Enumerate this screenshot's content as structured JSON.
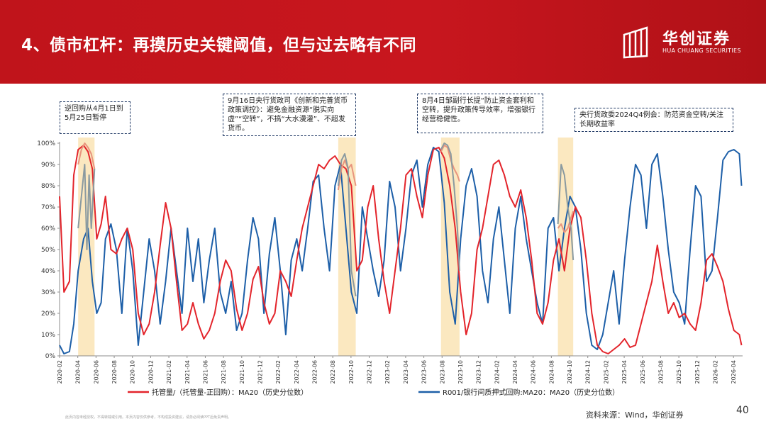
{
  "header": {
    "title": "4、债市杠杆：再摸历史关键阈值，但与过去略有不同",
    "logo_cn": "华创证券",
    "logo_en": "HUA CHUANG SECURITIES"
  },
  "annotations": [
    "逆回购从4月1日到5月25日暂停",
    "9月16日央行货政司《创新和完善货币政策调控》：避免金融资源“脱实向虚”“空转”，不搞“大水漫灌”、不超发货币。",
    "8月4日邹副行长提“防止资金套利和空转，提升政策传导效率，增强银行经营稳健性。",
    "央行货政委2024Q4例会：防范资金空转/关注长期收益率"
  ],
  "footer": {
    "disclaimer": "此页内容未经授权，不得转载或引用。本页内容仅供参考，不构成投资建议，请务必阅读PPT后免责声明。",
    "source": "资料来源：Wind，华创证券",
    "page_number": "40"
  },
  "chart_data": {
    "type": "line",
    "y_tick_labels": [
      "0%",
      "10%",
      "20%",
      "30%",
      "40%",
      "50%",
      "60%",
      "70%",
      "80%",
      "90%",
      "100%"
    ],
    "ylim": [
      0,
      100
    ],
    "x_tick_labels": [
      "2020-02",
      "2020-04",
      "2020-06",
      "2020-08",
      "2020-10",
      "2020-12",
      "2021-02",
      "2021-04",
      "2021-06",
      "2021-08",
      "2021-10",
      "2021-12",
      "2022-02",
      "2022-04",
      "2022-06",
      "2022-08",
      "2022-10",
      "2022-12",
      "2023-02",
      "2023-04",
      "2023-06",
      "2023-08",
      "2023-10",
      "2023-12",
      "2024-02",
      "2024-04",
      "2024-06",
      "2024-08",
      "2024-10",
      "2024-12",
      "2025-02",
      "2025-04",
      "2025-06",
      "2025-08",
      "2025-10",
      "2025-12",
      "2026-02",
      "2026-04"
    ],
    "x_range": [
      2020.08,
      2026.33
    ],
    "grid": false,
    "legend": "bottom",
    "shaded_periods": [
      {
        "start": 2020.25,
        "end": 2020.4
      },
      {
        "start": 2022.63,
        "end": 2022.79
      },
      {
        "start": 2023.57,
        "end": 2023.74
      },
      {
        "start": 2024.64,
        "end": 2024.78
      }
    ],
    "series": [
      {
        "name": "托管量/（托管量-正回购）：MA20（历史分位数）",
        "color": "#e3242b",
        "x": [
          2020.08,
          2020.12,
          2020.17,
          2020.21,
          2020.25,
          2020.3,
          2020.34,
          2020.38,
          2020.42,
          2020.46,
          2020.5,
          2020.55,
          2020.6,
          2020.65,
          2020.7,
          2020.75,
          2020.8,
          2020.85,
          2020.9,
          2020.95,
          2021.0,
          2021.05,
          2021.1,
          2021.15,
          2021.2,
          2021.25,
          2021.3,
          2021.35,
          2021.4,
          2021.45,
          2021.5,
          2021.55,
          2021.6,
          2021.65,
          2021.7,
          2021.75,
          2021.8,
          2021.85,
          2021.9,
          2021.95,
          2022.0,
          2022.05,
          2022.1,
          2022.15,
          2022.2,
          2022.25,
          2022.3,
          2022.35,
          2022.4,
          2022.45,
          2022.5,
          2022.55,
          2022.6,
          2022.65,
          2022.7,
          2022.75,
          2022.8,
          2022.85,
          2022.9,
          2022.95,
          2023.0,
          2023.05,
          2023.1,
          2023.15,
          2023.2,
          2023.25,
          2023.3,
          2023.35,
          2023.4,
          2023.45,
          2023.5,
          2023.55,
          2023.6,
          2023.65,
          2023.7,
          2023.75,
          2023.8,
          2023.85,
          2023.9,
          2023.95,
          2024.0,
          2024.05,
          2024.1,
          2024.15,
          2024.2,
          2024.25,
          2024.3,
          2024.35,
          2024.4,
          2024.45,
          2024.5,
          2024.55,
          2024.6,
          2024.65,
          2024.7,
          2024.75,
          2024.8,
          2024.85,
          2024.9,
          2024.95,
          2025.0,
          2025.05,
          2025.1,
          2025.15,
          2025.2,
          2025.25,
          2025.3,
          2025.35,
          2025.4,
          2025.45,
          2025.5,
          2025.55,
          2025.6,
          2025.65,
          2025.7,
          2025.75,
          2025.8,
          2025.85,
          2025.9,
          2025.95,
          2026.0,
          2026.05,
          2026.1,
          2026.15,
          2026.2,
          2026.25,
          2026.3,
          2026.32
        ],
        "y": [
          75,
          30,
          35,
          85,
          97,
          99,
          96,
          88,
          55,
          62,
          75,
          50,
          48,
          55,
          60,
          50,
          20,
          10,
          15,
          30,
          52,
          72,
          60,
          35,
          12,
          15,
          25,
          15,
          8,
          12,
          20,
          35,
          45,
          40,
          22,
          12,
          20,
          36,
          42,
          25,
          15,
          20,
          40,
          35,
          28,
          45,
          60,
          70,
          80,
          90,
          88,
          92,
          94,
          90,
          88,
          80,
          40,
          45,
          70,
          80,
          55,
          35,
          20,
          40,
          60,
          85,
          88,
          75,
          65,
          85,
          97,
          98,
          93,
          80,
          60,
          30,
          10,
          20,
          50,
          60,
          75,
          90,
          92,
          85,
          75,
          70,
          78,
          65,
          45,
          20,
          15,
          25,
          45,
          55,
          40,
          60,
          70,
          65,
          45,
          20,
          5,
          2,
          1,
          3,
          5,
          8,
          4,
          5,
          15,
          25,
          35,
          52,
          35,
          20,
          25,
          18,
          20,
          15,
          12,
          25,
          45,
          48,
          42,
          35,
          22,
          12,
          10,
          5
        ]
      },
      {
        "name": "R001/银行间质押式回购:MA20：MA20（历史分位数）",
        "color": "#1d5fa8",
        "x": [
          2020.08,
          2020.12,
          2020.17,
          2020.21,
          2020.25,
          2020.3,
          2020.34,
          2020.38,
          2020.42,
          2020.46,
          2020.5,
          2020.55,
          2020.6,
          2020.65,
          2020.7,
          2020.75,
          2020.8,
          2020.85,
          2020.9,
          2020.95,
          2021.0,
          2021.05,
          2021.1,
          2021.15,
          2021.2,
          2021.25,
          2021.3,
          2021.35,
          2021.4,
          2021.45,
          2021.5,
          2021.55,
          2021.6,
          2021.65,
          2021.7,
          2021.75,
          2021.8,
          2021.85,
          2021.9,
          2021.95,
          2022.0,
          2022.05,
          2022.1,
          2022.15,
          2022.2,
          2022.25,
          2022.3,
          2022.35,
          2022.4,
          2022.45,
          2022.5,
          2022.55,
          2022.6,
          2022.65,
          2022.7,
          2022.75,
          2022.8,
          2022.85,
          2022.9,
          2022.95,
          2023.0,
          2023.05,
          2023.1,
          2023.15,
          2023.2,
          2023.25,
          2023.3,
          2023.35,
          2023.4,
          2023.45,
          2023.5,
          2023.55,
          2023.6,
          2023.65,
          2023.7,
          2023.75,
          2023.8,
          2023.85,
          2023.9,
          2023.95,
          2024.0,
          2024.05,
          2024.1,
          2024.15,
          2024.2,
          2024.25,
          2024.3,
          2024.35,
          2024.4,
          2024.45,
          2024.5,
          2024.55,
          2024.6,
          2024.65,
          2024.7,
          2024.75,
          2024.8,
          2024.85,
          2024.9,
          2024.95,
          2025.0,
          2025.05,
          2025.1,
          2025.15,
          2025.2,
          2025.25,
          2025.3,
          2025.35,
          2025.4,
          2025.45,
          2025.5,
          2025.55,
          2025.6,
          2025.65,
          2025.7,
          2025.75,
          2025.8,
          2025.85,
          2025.9,
          2025.95,
          2026.0,
          2026.05,
          2026.1,
          2026.15,
          2026.2,
          2026.25,
          2026.3,
          2026.32
        ],
        "y": [
          5,
          1,
          2,
          15,
          40,
          55,
          60,
          35,
          20,
          25,
          55,
          62,
          50,
          20,
          60,
          40,
          5,
          30,
          55,
          40,
          15,
          35,
          60,
          40,
          20,
          60,
          35,
          55,
          25,
          45,
          60,
          30,
          20,
          35,
          12,
          20,
          45,
          65,
          55,
          20,
          48,
          65,
          40,
          10,
          45,
          55,
          40,
          60,
          82,
          85,
          60,
          40,
          80,
          90,
          60,
          30,
          20,
          70,
          55,
          40,
          28,
          45,
          82,
          70,
          40,
          60,
          85,
          92,
          70,
          90,
          98,
          96,
          72,
          30,
          15,
          55,
          80,
          88,
          75,
          40,
          25,
          55,
          70,
          45,
          20,
          60,
          75,
          55,
          40,
          25,
          15,
          60,
          65,
          40,
          60,
          75,
          70,
          50,
          20,
          5,
          3,
          10,
          25,
          40,
          15,
          45,
          70,
          90,
          85,
          60,
          90,
          95,
          75,
          50,
          30,
          25,
          15,
          50,
          80,
          75,
          35,
          40,
          65,
          92,
          96,
          97,
          95,
          80
        ]
      },
      {
        "name": "",
        "color": "#e8957e",
        "segments": [
          {
            "x": [
              2020.25,
              2020.28,
              2020.31,
              2020.34,
              2020.37,
              2020.4
            ],
            "y": [
              90,
              97,
              100,
              98,
              95,
              88
            ]
          },
          {
            "x": [
              2022.63,
              2022.66,
              2022.69,
              2022.72,
              2022.75,
              2022.79
            ],
            "y": [
              78,
              88,
              92,
              88,
              90,
              80
            ]
          },
          {
            "x": [
              2023.57,
              2023.6,
              2023.63,
              2023.66,
              2023.69,
              2023.72,
              2023.74
            ],
            "y": [
              96,
              99,
              98,
              92,
              88,
              85,
              82
            ]
          },
          {
            "x": [
              2024.64,
              2024.67,
              2024.7,
              2024.73,
              2024.76,
              2024.78
            ],
            "y": [
              60,
              62,
              58,
              60,
              65,
              68
            ]
          }
        ]
      },
      {
        "name": "",
        "color": "#8a9aa0",
        "segments": [
          {
            "x": [
              2020.25,
              2020.28,
              2020.31,
              2020.33,
              2020.35,
              2020.37,
              2020.4
            ],
            "y": [
              60,
              75,
              90,
              50,
              85,
              60,
              88
            ]
          },
          {
            "x": [
              2022.63,
              2022.66,
              2022.69,
              2022.72,
              2022.75,
              2022.79
            ],
            "y": [
              80,
              92,
              95,
              88,
              40,
              28
            ]
          },
          {
            "x": [
              2023.57,
              2023.6,
              2023.63,
              2023.66,
              2023.69,
              2023.72,
              2023.74
            ],
            "y": [
              97,
              100,
              99,
              95,
              80,
              60,
              40
            ]
          },
          {
            "x": [
              2024.64,
              2024.67,
              2024.7,
              2024.73,
              2024.76,
              2024.78
            ],
            "y": [
              62,
              90,
              85,
              70,
              60,
              45
            ]
          }
        ]
      }
    ]
  }
}
